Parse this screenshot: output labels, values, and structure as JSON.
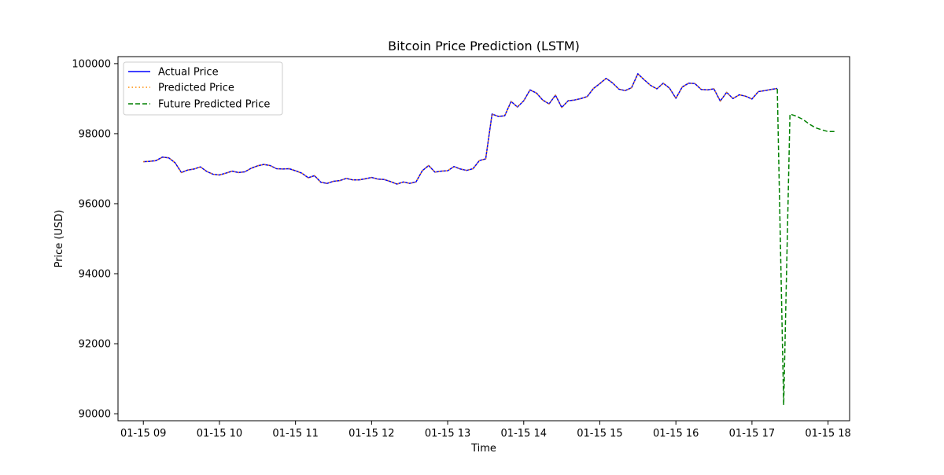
{
  "chart_data": {
    "type": "line",
    "title": "Bitcoin Price Prediction (LSTM)",
    "xlabel": "Time",
    "ylabel": "Price (USD)",
    "xlim": [
      "2025-01-15 08:40",
      "2025-01-15 18:17"
    ],
    "ylim": [
      89800,
      100200
    ],
    "grid": false,
    "legend_position": "upper-left",
    "x_ticks": [
      "2025-01-15 09:00",
      "2025-01-15 10:00",
      "2025-01-15 11:00",
      "2025-01-15 12:00",
      "2025-01-15 13:00",
      "2025-01-15 14:00",
      "2025-01-15 15:00",
      "2025-01-15 16:00",
      "2025-01-15 17:00",
      "2025-01-15 18:00"
    ],
    "x_tick_labels": [
      "01-15 09",
      "01-15 10",
      "01-15 11",
      "01-15 12",
      "01-15 13",
      "01-15 14",
      "01-15 15",
      "01-15 16",
      "01-15 17",
      "01-15 18"
    ],
    "y_ticks": [
      90000,
      92000,
      94000,
      96000,
      98000,
      100000
    ],
    "y_tick_labels": [
      "90000",
      "92000",
      "94000",
      "96000",
      "98000",
      "100000"
    ],
    "x": [
      "2025-01-15 09:00",
      "2025-01-15 09:05",
      "2025-01-15 09:10",
      "2025-01-15 09:15",
      "2025-01-15 09:20",
      "2025-01-15 09:25",
      "2025-01-15 09:30",
      "2025-01-15 09:35",
      "2025-01-15 09:40",
      "2025-01-15 09:45",
      "2025-01-15 09:50",
      "2025-01-15 09:55",
      "2025-01-15 10:00",
      "2025-01-15 10:05",
      "2025-01-15 10:10",
      "2025-01-15 10:15",
      "2025-01-15 10:20",
      "2025-01-15 10:25",
      "2025-01-15 10:30",
      "2025-01-15 10:35",
      "2025-01-15 10:40",
      "2025-01-15 10:45",
      "2025-01-15 10:50",
      "2025-01-15 10:55",
      "2025-01-15 11:00",
      "2025-01-15 11:05",
      "2025-01-15 11:10",
      "2025-01-15 11:15",
      "2025-01-15 11:20",
      "2025-01-15 11:25",
      "2025-01-15 11:30",
      "2025-01-15 11:35",
      "2025-01-15 11:40",
      "2025-01-15 11:45",
      "2025-01-15 11:50",
      "2025-01-15 11:55",
      "2025-01-15 12:00",
      "2025-01-15 12:05",
      "2025-01-15 12:10",
      "2025-01-15 12:15",
      "2025-01-15 12:20",
      "2025-01-15 12:25",
      "2025-01-15 12:30",
      "2025-01-15 12:35",
      "2025-01-15 12:40",
      "2025-01-15 12:45",
      "2025-01-15 12:50",
      "2025-01-15 12:55",
      "2025-01-15 13:00",
      "2025-01-15 13:05",
      "2025-01-15 13:10",
      "2025-01-15 13:15",
      "2025-01-15 13:20",
      "2025-01-15 13:25",
      "2025-01-15 13:30",
      "2025-01-15 13:35",
      "2025-01-15 13:40",
      "2025-01-15 13:45",
      "2025-01-15 13:50",
      "2025-01-15 13:55",
      "2025-01-15 14:00",
      "2025-01-15 14:05",
      "2025-01-15 14:10",
      "2025-01-15 14:15",
      "2025-01-15 14:20",
      "2025-01-15 14:25",
      "2025-01-15 14:30",
      "2025-01-15 14:35",
      "2025-01-15 14:40",
      "2025-01-15 14:45",
      "2025-01-15 14:50",
      "2025-01-15 14:55",
      "2025-01-15 15:00",
      "2025-01-15 15:05",
      "2025-01-15 15:10",
      "2025-01-15 15:15",
      "2025-01-15 15:20",
      "2025-01-15 15:25",
      "2025-01-15 15:30",
      "2025-01-15 15:35",
      "2025-01-15 15:40",
      "2025-01-15 15:45",
      "2025-01-15 15:50",
      "2025-01-15 15:55",
      "2025-01-15 16:00",
      "2025-01-15 16:05",
      "2025-01-15 16:10",
      "2025-01-15 16:15",
      "2025-01-15 16:20",
      "2025-01-15 16:25",
      "2025-01-15 16:30",
      "2025-01-15 16:35",
      "2025-01-15 16:40",
      "2025-01-15 16:45",
      "2025-01-15 16:50",
      "2025-01-15 16:55",
      "2025-01-15 17:00",
      "2025-01-15 17:05",
      "2025-01-15 17:10",
      "2025-01-15 17:15",
      "2025-01-15 17:20"
    ],
    "series": [
      {
        "name": "Actual Price",
        "color": "#0000ff",
        "style": "solid",
        "values": [
          97200,
          97210,
          97230,
          97330,
          97310,
          97170,
          96890,
          96960,
          96990,
          97050,
          96920,
          96840,
          96820,
          96870,
          96930,
          96890,
          96910,
          97010,
          97080,
          97120,
          97090,
          97000,
          96990,
          97000,
          96940,
          96870,
          96740,
          96800,
          96610,
          96580,
          96640,
          96660,
          96720,
          96680,
          96680,
          96710,
          96750,
          96700,
          96690,
          96630,
          96560,
          96620,
          96580,
          96620,
          96940,
          97090,
          96900,
          96930,
          96940,
          97060,
          96990,
          96950,
          97000,
          97230,
          97280,
          98560,
          98490,
          98510,
          98920,
          98760,
          98940,
          99250,
          99160,
          98960,
          98850,
          99100,
          98750,
          98940,
          98960,
          99000,
          99060,
          99290,
          99430,
          99580,
          99450,
          99270,
          99230,
          99310,
          99710,
          99540,
          99380,
          99280,
          99440,
          99300,
          99010,
          99330,
          99440,
          99430,
          99260,
          99250,
          99280,
          98930,
          99180,
          99000,
          99110,
          99070,
          98990,
          99200,
          99230,
          99260,
          99290
        ]
      },
      {
        "name": "Predicted Price",
        "color": "#ff8c00",
        "style": "dotted",
        "values": [
          97200,
          97210,
          97230,
          97330,
          97310,
          97170,
          96890,
          96960,
          96990,
          97050,
          96920,
          96840,
          96820,
          96870,
          96930,
          96890,
          96910,
          97010,
          97080,
          97120,
          97090,
          97000,
          96990,
          97000,
          96940,
          96870,
          96740,
          96800,
          96610,
          96580,
          96640,
          96660,
          96720,
          96680,
          96680,
          96710,
          96750,
          96700,
          96690,
          96630,
          96560,
          96620,
          96580,
          96620,
          96940,
          97090,
          96900,
          96930,
          96940,
          97060,
          96990,
          96950,
          97000,
          97230,
          97280,
          98560,
          98490,
          98510,
          98920,
          98760,
          98940,
          99250,
          99160,
          98960,
          98850,
          99100,
          98750,
          98940,
          98960,
          99000,
          99060,
          99290,
          99430,
          99580,
          99450,
          99270,
          99230,
          99310,
          99710,
          99540,
          99380,
          99280,
          99440,
          99300,
          99010,
          99330,
          99440,
          99430,
          99260,
          99250,
          99280,
          98930,
          99180,
          99000,
          99110,
          99070,
          98990,
          99200,
          99230,
          99260,
          99290
        ]
      },
      {
        "name": "Future Predicted Price",
        "color": "#008000",
        "style": "dashed",
        "x": [
          "2025-01-15 17:20",
          "2025-01-15 17:25",
          "2025-01-15 17:30",
          "2025-01-15 17:35",
          "2025-01-15 17:40",
          "2025-01-15 17:45",
          "2025-01-15 17:50",
          "2025-01-15 17:55",
          "2025-01-15 18:00",
          "2025-01-15 18:05"
        ],
        "values": [
          99280,
          90250,
          98560,
          98500,
          98410,
          98280,
          98170,
          98110,
          98060,
          98060
        ]
      }
    ]
  }
}
